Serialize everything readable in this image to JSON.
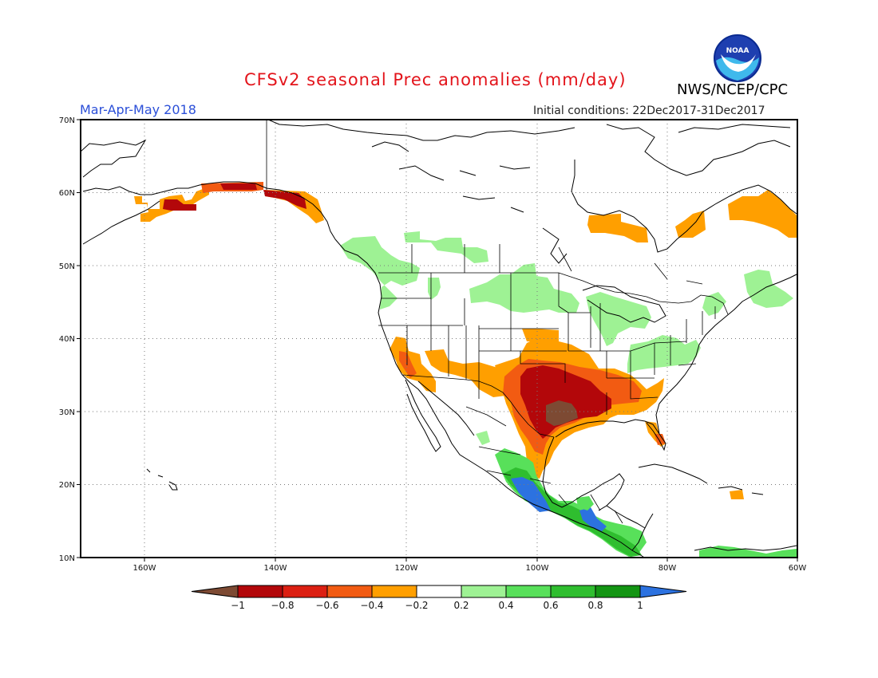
{
  "header": {
    "title": "CFSv2 seasonal Prec anomalies (mm/day)",
    "period": "Mar-Apr-May 2018",
    "initial_conditions": "Initial conditions: 22Dec2017-31Dec2017",
    "agency": "NWS/NCEP/CPC",
    "logo_text": "NOAA"
  },
  "map": {
    "region": "North America",
    "lat_range": [
      10,
      70
    ],
    "lon_range": [
      -172,
      -60
    ],
    "lat_ticks": [
      "70N",
      "60N",
      "50N",
      "40N",
      "30N",
      "20N",
      "10N"
    ],
    "lon_ticks": [
      "160W",
      "140W",
      "120W",
      "100W",
      "80W",
      "60W"
    ],
    "grid": "dotted"
  },
  "colorbar": {
    "tick_labels": [
      "-1",
      "-0.8",
      "-0.6",
      "-0.4",
      "-0.2",
      "0.2",
      "0.4",
      "0.6",
      "0.8",
      "1"
    ],
    "colors": [
      "#7d4a33",
      "#b3070a",
      "#dc1f12",
      "#f25b12",
      "#ff9f00",
      "#ffffff",
      "#9ef294",
      "#58e05a",
      "#2fbe2f",
      "#139513",
      "#2c72e0"
    ]
  },
  "anomaly_regions": [
    {
      "name": "Texas-Louisiana deficit core",
      "level": "-1",
      "color": "#7d4a33"
    },
    {
      "name": "Southern Plains / Lower Mississippi",
      "level": "-0.8",
      "color": "#b3070a"
    },
    {
      "name": "Southern Plains ring",
      "level": "-0.6",
      "color": "#dc1f12"
    },
    {
      "name": "Southwest / Southeast",
      "level": "-0.4",
      "color": "#f25b12"
    },
    {
      "name": "Southern Alaska / Gulf of Alaska coast",
      "level": "-0.8",
      "color": "#b3070a"
    },
    {
      "name": "Hudson Bay / Labrador",
      "level": "-0.2",
      "color": "#ff9f00"
    },
    {
      "name": "Pacific Northwest / Northern Plains / Great Lakes",
      "level": "0.2",
      "color": "#9ef294"
    },
    {
      "name": "Southern Mexico / Central America",
      "level": "0.6",
      "color": "#2fbe2f"
    },
    {
      "name": "Pacific coast of Mexico",
      "level": "1",
      "color": "#2c72e0"
    }
  ]
}
